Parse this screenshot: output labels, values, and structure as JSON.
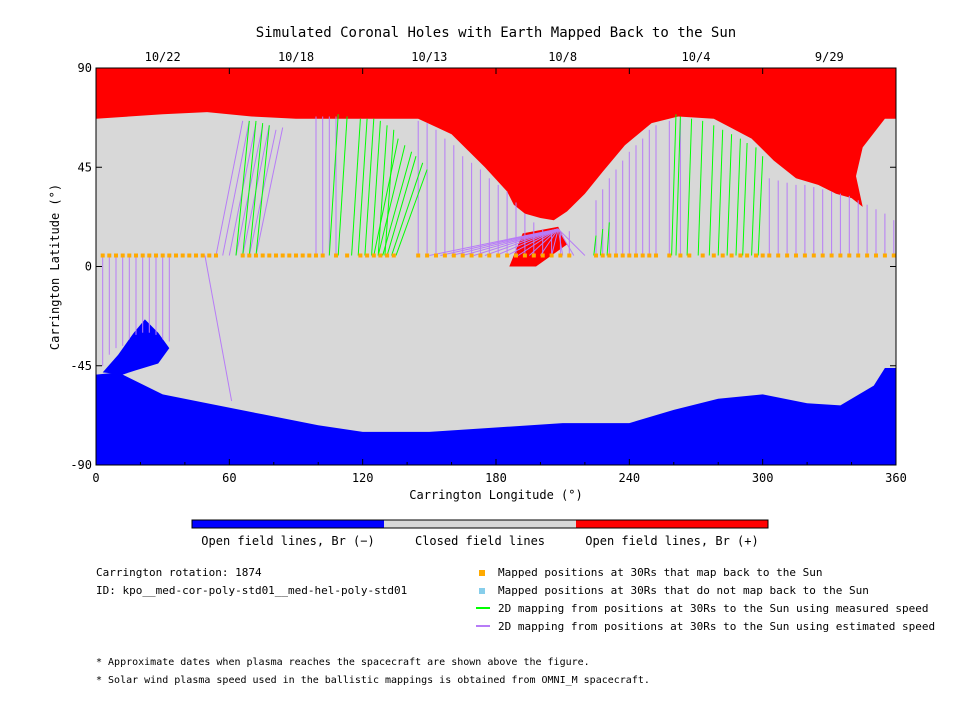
{
  "chart_data": {
    "type": "map",
    "title": "Simulated Coronal Holes with Earth Mapped Back to the Sun",
    "xlabel": "Carrington Longitude (°)",
    "ylabel": "Carrington Latitude (°)",
    "xlim": [
      0,
      360
    ],
    "ylim": [
      -90,
      90
    ],
    "x_ticks": [
      "0",
      "60",
      "120",
      "180",
      "240",
      "300",
      "360"
    ],
    "y_ticks": [
      "90",
      "45",
      "0",
      "-45",
      "-90"
    ],
    "top_date_labels": [
      {
        "label": "10/22",
        "lon": 30
      },
      {
        "label": "10/18",
        "lon": 90
      },
      {
        "label": "10/13",
        "lon": 150
      },
      {
        "label": "10/8",
        "lon": 210
      },
      {
        "label": "10/4",
        "lon": 270
      },
      {
        "label": "9/29",
        "lon": 330
      }
    ],
    "colorbar": [
      {
        "label": "Open field lines, Br (−)",
        "color": "#0000ff"
      },
      {
        "label": "Closed field lines",
        "color": "#d8d8d8"
      },
      {
        "label": "Open field lines, Br (+)",
        "color": "#ff0000"
      }
    ],
    "north_boundary": [
      [
        0,
        67
      ],
      [
        30,
        69
      ],
      [
        50,
        70
      ],
      [
        70,
        68
      ],
      [
        90,
        67
      ],
      [
        120,
        67
      ],
      [
        145,
        67
      ],
      [
        160,
        60
      ],
      [
        175,
        45
      ],
      [
        185,
        34
      ],
      [
        188,
        28
      ],
      [
        193,
        24
      ],
      [
        200,
        22
      ],
      [
        206,
        21
      ],
      [
        212,
        25
      ],
      [
        220,
        33
      ],
      [
        228,
        43
      ],
      [
        238,
        55
      ],
      [
        250,
        65
      ],
      [
        262,
        68
      ],
      [
        278,
        67
      ],
      [
        295,
        58
      ],
      [
        305,
        48
      ],
      [
        315,
        40
      ],
      [
        325,
        37
      ],
      [
        333,
        33
      ],
      [
        340,
        31
      ],
      [
        345,
        27
      ],
      [
        342,
        41
      ],
      [
        345,
        54
      ],
      [
        355,
        67
      ],
      [
        360,
        67
      ]
    ],
    "south_boundary": [
      [
        0,
        -49
      ],
      [
        10,
        -48
      ],
      [
        30,
        -58
      ],
      [
        50,
        -62
      ],
      [
        75,
        -67
      ],
      [
        100,
        -72
      ],
      [
        120,
        -75
      ],
      [
        150,
        -75
      ],
      [
        180,
        -73
      ],
      [
        210,
        -71
      ],
      [
        240,
        -71
      ],
      [
        260,
        -65
      ],
      [
        280,
        -60
      ],
      [
        300,
        -58
      ],
      [
        320,
        -62
      ],
      [
        335,
        -63
      ],
      [
        350,
        -54
      ],
      [
        355,
        -46
      ],
      [
        360,
        -46
      ]
    ],
    "south_tongue": [
      [
        3,
        -48
      ],
      [
        10,
        -40
      ],
      [
        17,
        -30
      ],
      [
        22,
        -24
      ],
      [
        28,
        -30
      ],
      [
        33,
        -37
      ],
      [
        28,
        -44
      ],
      [
        18,
        -47
      ],
      [
        12,
        -49
      ]
    ],
    "red_tail": [
      [
        186,
        0
      ],
      [
        192,
        15
      ],
      [
        208,
        18
      ],
      [
        212,
        10
      ],
      [
        198,
        0
      ]
    ],
    "series": [
      {
        "name": "Mapped positions at 30Rs that map back to the Sun",
        "color": "#ffaa00",
        "lat": 5,
        "lon": [
          3,
          6,
          9,
          12,
          15,
          18,
          21,
          24,
          27,
          30,
          33,
          36,
          39,
          42,
          45,
          48,
          51,
          54,
          66,
          69,
          72,
          75,
          78,
          81,
          84,
          87,
          90,
          93,
          96,
          99,
          102,
          108,
          113,
          119,
          122,
          125,
          128,
          131,
          134,
          145,
          149,
          153,
          157,
          161,
          165,
          169,
          173,
          177,
          181,
          185,
          189,
          193,
          197,
          201,
          205,
          209,
          213,
          225,
          228,
          231,
          234,
          237,
          240,
          243,
          246,
          249,
          252,
          258,
          263,
          267,
          273,
          278,
          282,
          286,
          290,
          293,
          297,
          300,
          303,
          307,
          311,
          315,
          319,
          323,
          327,
          331,
          335,
          339,
          343,
          347,
          351,
          355,
          359
        ]
      },
      {
        "name": "Mapped positions at 30Rs that do not map back to the Sun",
        "color": "#87ceeb",
        "lat": 5,
        "lon": []
      },
      {
        "name": "2D mapping from positions at 30Rs to the Sun using measured speed",
        "color": "#00ff00",
        "lines": [
          [
            62,
            2,
            67,
            2,
            70,
            3,
            73,
            4,
            76,
            5
          ],
          [
            84,
            48,
            87,
            54,
            91,
            62,
            95,
            64,
            98,
            66
          ],
          [
            118,
            60,
            123,
            60,
            128,
            62,
            133,
            62,
            139,
            58,
            143,
            56,
            147,
            52,
            151,
            46,
            154,
            42,
            158,
            38,
            166,
            27,
            169,
            27,
            166,
            15,
            171,
            35,
            169,
            54,
            173,
            51
          ],
          [
            222,
            222,
            226,
            232,
            265,
            265,
            270,
            279,
            284,
            288,
            293,
            301
          ],
          [
            48,
            56,
            60,
            65,
            60,
            48,
            50,
            55,
            54,
            58,
            55,
            47
          ]
        ]
      },
      {
        "name": "2D mapping from positions at 30Rs to the Sun using estimated speed",
        "color": "#b77cf7",
        "lines": [
          [
            1,
            3,
            5,
            7,
            9,
            11,
            13,
            15,
            17,
            20,
            23,
            26,
            28,
            31,
            34,
            38,
            41,
            44,
            47,
            50,
            52,
            55,
            58
          ],
          [
            60,
            58,
            56,
            54,
            52,
            50,
            48,
            46,
            44,
            42,
            40,
            38,
            36,
            34,
            32,
            30,
            28,
            27,
            26,
            25,
            25,
            24,
            -30
          ],
          [
            65,
            70,
            75,
            80,
            85,
            90,
            95,
            100,
            105,
            110,
            115,
            120,
            125,
            130,
            135,
            140,
            145,
            150,
            155,
            160,
            165,
            170,
            175,
            180,
            185,
            190,
            195,
            200,
            205,
            210,
            215,
            220,
            225,
            230,
            235,
            240,
            245,
            250,
            255,
            260,
            265,
            270,
            275,
            280,
            285,
            290,
            295,
            300,
            305,
            310,
            315,
            320,
            325,
            330,
            335,
            340,
            345,
            350,
            355,
            360
          ]
        ]
      }
    ]
  },
  "legend": {
    "cr_label": "Carrington rotation: 1874",
    "id_label": "ID: kpo__med-cor-poly-std01__med-hel-poly-std01",
    "items": [
      {
        "label": "Mapped positions at 30Rs that map back to the Sun",
        "color": "#ffaa00",
        "kind": "square"
      },
      {
        "label": "Mapped positions at 30Rs that do not map back to the Sun",
        "color": "#87ceeb",
        "kind": "square"
      },
      {
        "label": "2D mapping from positions at 30Rs to the Sun using measured speed",
        "color": "#00ff00",
        "kind": "line"
      },
      {
        "label": "2D mapping from positions at 30Rs to the Sun using estimated speed",
        "color": "#b77cf7",
        "kind": "line"
      }
    ]
  },
  "footnotes": {
    "note1": "* Approximate dates when plasma reaches the spacecraft are shown above the figure.",
    "note2": "* Solar wind plasma speed used in the ballistic mappings is obtained from OMNI_M spacecraft."
  }
}
